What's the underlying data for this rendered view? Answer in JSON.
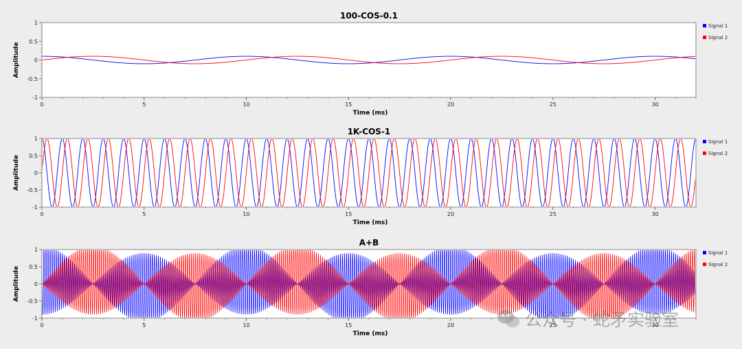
{
  "chart_data": [
    {
      "type": "line",
      "title": "100-COS-0.1",
      "xlabel": "Time (ms)",
      "ylabel": "Amplitude",
      "xlim": [
        0,
        32
      ],
      "ylim": [
        -1,
        1
      ],
      "xticks": [
        "0",
        "5",
        "10",
        "15",
        "20",
        "25",
        "30"
      ],
      "yticks": [
        "1",
        "0.5",
        "0",
        "-0.5",
        "-1"
      ],
      "legend": "right",
      "series": [
        {
          "name": "Signal 1",
          "color": "#0000ff",
          "waveform": "cos",
          "frequency_hz": 100,
          "amplitude": 0.1,
          "phase_deg": 0
        },
        {
          "name": "Signal 2",
          "color": "#ff0000",
          "waveform": "sin",
          "frequency_hz": 100,
          "amplitude": 0.1,
          "phase_deg": 0
        }
      ]
    },
    {
      "type": "line",
      "title": "1K-COS-1",
      "xlabel": "Time (ms)",
      "ylabel": "Amplitude",
      "xlim": [
        0,
        32
      ],
      "ylim": [
        -1,
        1
      ],
      "xticks": [
        "0",
        "5",
        "10",
        "15",
        "20",
        "25",
        "30"
      ],
      "yticks": [
        "1",
        "0.5",
        "0",
        "-0.5",
        "-1"
      ],
      "legend": "right",
      "series": [
        {
          "name": "Signal 1",
          "color": "#0000ff",
          "waveform": "cos",
          "frequency_hz": 1000,
          "amplitude": 1,
          "phase_deg": 0
        },
        {
          "name": "Signal 2",
          "color": "#ff0000",
          "waveform": "sin",
          "frequency_hz": 1000,
          "amplitude": 1,
          "phase_deg": 0
        }
      ]
    },
    {
      "type": "line",
      "title": "A+B",
      "xlabel": "Time (ms)",
      "ylabel": "Amplitude",
      "xlim": [
        0,
        32
      ],
      "ylim": [
        -1,
        1
      ],
      "xticks": [
        "0",
        "5",
        "10",
        "15",
        "20",
        "25",
        "30"
      ],
      "yticks": [
        "1",
        "0.5",
        "0",
        "-0.5",
        "-1"
      ],
      "legend": "right",
      "series": [
        {
          "name": "Signal 1",
          "color": "#0000ff",
          "waveform": "sum",
          "components": [
            {
              "waveform": "cos",
              "frequency_hz": 100,
              "amplitude": 0.1,
              "phase_deg": 0
            },
            {
              "waveform": "cos",
              "frequency_hz": 10000,
              "amplitude": 1,
              "phase_deg": 0,
              "envelope_hz": 100
            }
          ]
        },
        {
          "name": "Signal 2",
          "color": "#ff0000",
          "waveform": "sum",
          "components": [
            {
              "waveform": "sin",
              "frequency_hz": 100,
              "amplitude": 0.1,
              "phase_deg": 0
            },
            {
              "waveform": "sin",
              "frequency_hz": 10000,
              "amplitude": 1,
              "phase_deg": 0,
              "envelope_hz": 100
            }
          ]
        }
      ]
    }
  ],
  "watermark": {
    "text": "公众号 · 蛇矛实验室",
    "icon": "wechat-logo-icon"
  }
}
